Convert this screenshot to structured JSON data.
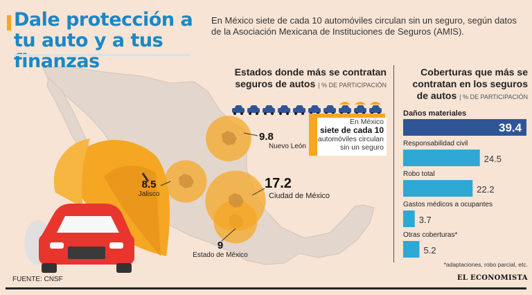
{
  "header": {
    "title": "Dale protección a tu auto y a tus finanzas",
    "intro": "En México siete de cada 10 automóviles circulan sin un seguro, según datos de la Asociación Mexicana de Instituciones de Seguros (AMIS)."
  },
  "states_panel": {
    "heading": "Estados donde más se contratan seguros de autos",
    "unit": "| % DE PARTICIPACIÓN",
    "callout": {
      "line1": "En México",
      "line2": "siete de cada 10",
      "line3": "automóviles circulan",
      "line4": "sin un seguro"
    },
    "cars_total": 10,
    "cars_insured": 3
  },
  "coverage_panel": {
    "heading": "Coberturas que más se contratan en los seguros de autos",
    "unit": "| % DE PARTICIPACIÓN",
    "footnote": "*adaptaciones, robo parcial, etc."
  },
  "chart_data": [
    {
      "type": "scatter",
      "title": "Estados donde más se contratan seguros de autos",
      "unit": "% DE PARTICIPACIÓN",
      "points": [
        {
          "label": "Nuevo León",
          "value": 9.8
        },
        {
          "label": "Jalisco",
          "value": 8.5
        },
        {
          "label": "Ciudad de México",
          "value": 17.2
        },
        {
          "label": "Estado de México",
          "value": 9.0
        }
      ],
      "color": "#f5a623"
    },
    {
      "type": "bar",
      "title": "Coberturas que más se contratan en los seguros de autos",
      "unit": "% DE PARTICIPACIÓN",
      "categories": [
        "Daños materiales",
        "Responsabilidad civil",
        "Robo total",
        "Gastos médicos a ocupantes",
        "Otras coberturas*"
      ],
      "values": [
        39.4,
        24.5,
        22.2,
        3.7,
        5.2
      ],
      "highlight_color": "#2f5597",
      "bar_color": "#2ea8d5",
      "xlim": [
        0,
        39.4
      ]
    }
  ],
  "footer": {
    "source": "FUENTE: CNSF",
    "brand": "EL ECONOMISTA"
  },
  "colors": {
    "title": "#1b87c5",
    "accent": "#f5a623",
    "background": "#f7e4d5",
    "map": "#e3d6cc",
    "car": "#e8352e"
  }
}
